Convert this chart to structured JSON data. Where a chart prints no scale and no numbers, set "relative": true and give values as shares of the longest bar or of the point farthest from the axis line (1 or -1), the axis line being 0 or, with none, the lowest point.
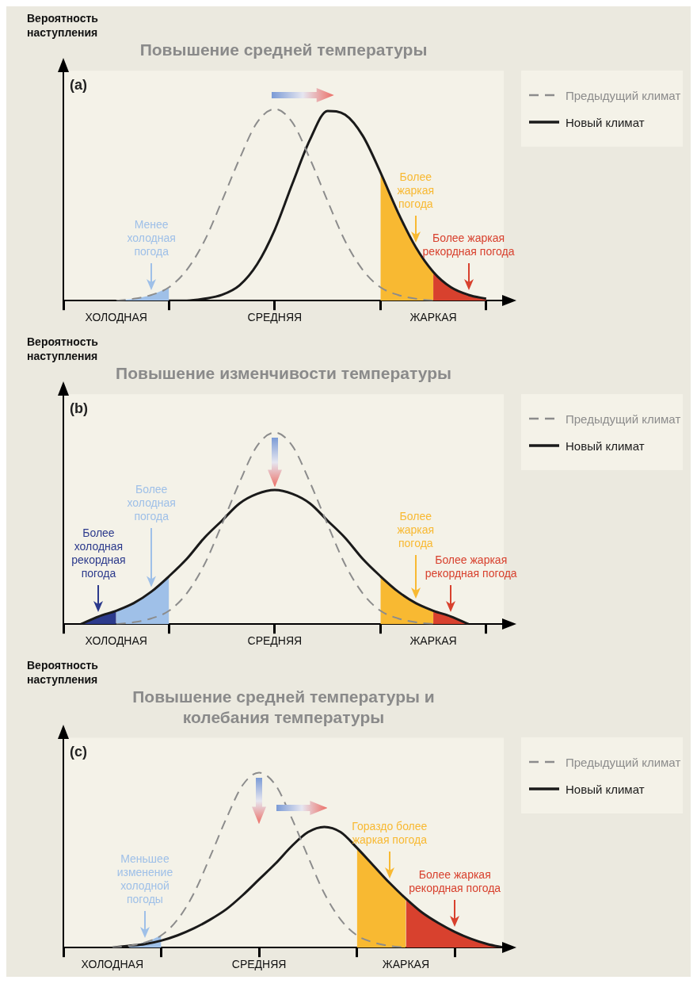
{
  "chart_data": [
    {
      "type": "line",
      "relative": true,
      "title": "Повышение средней температуры",
      "ylabel": "Вероятность\nнаступления",
      "legend": "top right",
      "categories": [
        null,
        null,
        null,
        "ХОЛОДНАЯ",
        null,
        null,
        null,
        null,
        null,
        null,
        null,
        null,
        "СРЕДНЯЯ",
        null,
        null,
        null,
        null,
        null,
        null,
        null,
        null,
        "ЖАРКАЯ",
        null,
        null,
        null,
        null
      ],
      "series": [
        {
          "type": "area",
          "color": "#9fc0e8",
          "values": [
            null,
            null,
            null,
            0,
            0.01,
            0.03,
            0.07,
            null,
            null,
            null,
            null,
            null,
            null,
            null,
            null,
            null,
            null,
            null,
            null,
            null,
            null,
            null,
            null,
            null,
            null,
            null
          ]
        },
        {
          "type": "area",
          "color": "#f8b932",
          "values": [
            null,
            null,
            null,
            null,
            null,
            null,
            null,
            null,
            null,
            null,
            null,
            null,
            null,
            null,
            null,
            null,
            null,
            null,
            0.67,
            0.46,
            0.28,
            0.15,
            null,
            null,
            null,
            null
          ]
        },
        {
          "type": "area",
          "color": "#d8412e",
          "values": [
            null,
            null,
            null,
            null,
            null,
            null,
            null,
            null,
            null,
            null,
            null,
            null,
            null,
            null,
            null,
            null,
            null,
            null,
            null,
            null,
            null,
            0.15,
            0.07,
            0.03,
            0.01,
            null
          ]
        },
        {
          "name": "Предыдущий климат",
          "color": "#8c8c8c",
          "line_style": "dashed",
          "values": [
            null,
            null,
            null,
            0,
            0.01,
            0.03,
            0.07,
            0.16,
            0.31,
            0.52,
            0.74,
            0.93,
            1,
            0.93,
            0.74,
            0.52,
            0.31,
            0.16,
            0.07,
            0.03,
            0.01,
            0,
            null,
            null,
            null,
            null
          ]
        },
        {
          "name": "Новый климат",
          "color": "#1a1a1a",
          "line_style": "solid",
          "values": [
            null,
            null,
            null,
            null,
            null,
            null,
            0,
            0,
            0.01,
            0.03,
            0.08,
            0.19,
            0.37,
            0.61,
            0.84,
            0.99,
            0.97,
            0.86,
            0.67,
            0.46,
            0.28,
            0.15,
            0.07,
            0.03,
            0.01,
            null
          ]
        }
      ],
      "annotations": [
        "(a)",
        "Менее\nхолодная\nпогода",
        "Более\nжаркая\nпогода",
        "Более жаркая\nрекордная погода"
      ]
    },
    {
      "type": "line",
      "relative": true,
      "title": "Повышение изменчивости температуры",
      "ylabel": "Вероятность\nнаступления",
      "legend": "top right",
      "categories": [
        null,
        null,
        null,
        "ХОЛОДНАЯ",
        null,
        null,
        null,
        null,
        null,
        null,
        null,
        null,
        "СРЕДНЯЯ",
        null,
        null,
        null,
        null,
        null,
        null,
        null,
        null,
        "ЖАРКАЯ",
        null,
        null,
        null,
        null
      ],
      "series": [
        {
          "type": "area",
          "color": "#2c3a8c",
          "values": [
            null,
            0,
            0.04,
            0.07,
            null,
            null,
            null,
            null,
            null,
            null,
            null,
            null,
            null,
            null,
            null,
            null,
            null,
            null,
            null,
            null,
            null,
            null,
            null,
            null,
            null,
            null
          ]
        },
        {
          "type": "area",
          "color": "#9fc0e8",
          "values": [
            null,
            null,
            null,
            0.07,
            0.11,
            0.17,
            0.25,
            null,
            null,
            null,
            null,
            null,
            null,
            null,
            null,
            null,
            null,
            null,
            null,
            null,
            null,
            null,
            null,
            null,
            null,
            null
          ]
        },
        {
          "type": "area",
          "color": "#f8b932",
          "values": [
            null,
            null,
            null,
            null,
            null,
            null,
            null,
            null,
            null,
            null,
            null,
            null,
            null,
            null,
            null,
            null,
            null,
            null,
            0.25,
            0.17,
            0.11,
            0.07,
            null,
            null,
            null,
            null
          ]
        },
        {
          "type": "area",
          "color": "#d8412e",
          "values": [
            null,
            null,
            null,
            null,
            null,
            null,
            null,
            null,
            null,
            null,
            null,
            null,
            null,
            null,
            null,
            null,
            null,
            null,
            null,
            null,
            null,
            0.07,
            0.04,
            0,
            null,
            null
          ]
        },
        {
          "name": "Предыдущий климат",
          "color": "#8c8c8c",
          "line_style": "dashed",
          "values": [
            null,
            null,
            null,
            0,
            0.01,
            0.03,
            0.07,
            0.16,
            0.31,
            0.52,
            0.74,
            0.93,
            1,
            0.93,
            0.74,
            0.52,
            0.31,
            0.16,
            0.07,
            0.03,
            0.01,
            0,
            null,
            null,
            null,
            null
          ]
        },
        {
          "name": "Новый климат",
          "color": "#1a1a1a",
          "line_style": "solid",
          "values": [
            null,
            0,
            0.04,
            0.07,
            0.11,
            0.17,
            0.25,
            0.34,
            0.45,
            0.54,
            0.63,
            0.68,
            0.7,
            0.68,
            0.63,
            0.54,
            0.45,
            0.34,
            0.25,
            0.17,
            0.11,
            0.07,
            0.04,
            0,
            null,
            null
          ]
        }
      ],
      "annotations": [
        "(b)",
        "Более\nхолодная\nрекордная\nпогода",
        "Более\nхолодная\nпогода",
        "Более\nжаркая\nпогода",
        "Более жаркая\nрекордная погода"
      ]
    },
    {
      "type": "line",
      "relative": true,
      "title": "Повышение средней температуры и\nколебания температуры",
      "ylabel": "Вероятность\nнаступления",
      "legend": "top right",
      "categories": [
        null,
        null,
        null,
        "ХОЛОДНАЯ",
        null,
        null,
        null,
        null,
        null,
        null,
        null,
        null,
        "СРЕДНЯЯ",
        null,
        null,
        null,
        null,
        null,
        null,
        null,
        null,
        "ЖАРКАЯ",
        null,
        null,
        null,
        null,
        null,
        null
      ],
      "series": [
        {
          "type": "area",
          "color": "#9fc0e8",
          "values": [
            null,
            null,
            null,
            null,
            0.01,
            0.03,
            0.07,
            null,
            null,
            null,
            null,
            null,
            null,
            null,
            null,
            null,
            null,
            null,
            null,
            null,
            null,
            null,
            null,
            null,
            null,
            null,
            null,
            null
          ]
        },
        {
          "type": "area",
          "color": "#f8b932",
          "values": [
            null,
            null,
            null,
            null,
            null,
            null,
            null,
            null,
            null,
            null,
            null,
            null,
            null,
            null,
            null,
            null,
            null,
            null,
            0.57,
            0.47,
            0.37,
            0.28,
            null,
            null,
            null,
            null,
            null,
            null
          ]
        },
        {
          "type": "area",
          "color": "#d8412e",
          "values": [
            null,
            null,
            null,
            null,
            null,
            null,
            null,
            null,
            null,
            null,
            null,
            null,
            null,
            null,
            null,
            null,
            null,
            null,
            null,
            null,
            null,
            0.28,
            0.2,
            0.14,
            0.09,
            0.05,
            0.02,
            0
          ]
        },
        {
          "name": "Предыдущий климат",
          "color": "#8c8c8c",
          "line_style": "dashed",
          "values": [
            null,
            null,
            null,
            0,
            0.01,
            0.03,
            0.07,
            0.16,
            0.31,
            0.52,
            0.74,
            0.93,
            1,
            0.93,
            0.74,
            0.52,
            0.31,
            0.16,
            0.07,
            0.03,
            0.01,
            0,
            null,
            null,
            null,
            null,
            null,
            null
          ]
        },
        {
          "name": "Новый климат",
          "color": "#1a1a1a",
          "line_style": "solid",
          "values": [
            null,
            null,
            null,
            0,
            0.01,
            0.02,
            0.04,
            0.07,
            0.11,
            0.16,
            0.22,
            0.3,
            0.39,
            0.48,
            0.58,
            0.66,
            0.69,
            0.66,
            0.57,
            0.47,
            0.37,
            0.28,
            0.2,
            0.14,
            0.09,
            0.05,
            0.02,
            0
          ]
        }
      ],
      "annotations": [
        "(c)",
        "Меньшее\nизменение\nхолодной\nпогоды",
        "Гораздо более\nжаркая погода",
        "Более жаркая\nрекордная погода"
      ]
    }
  ]
}
